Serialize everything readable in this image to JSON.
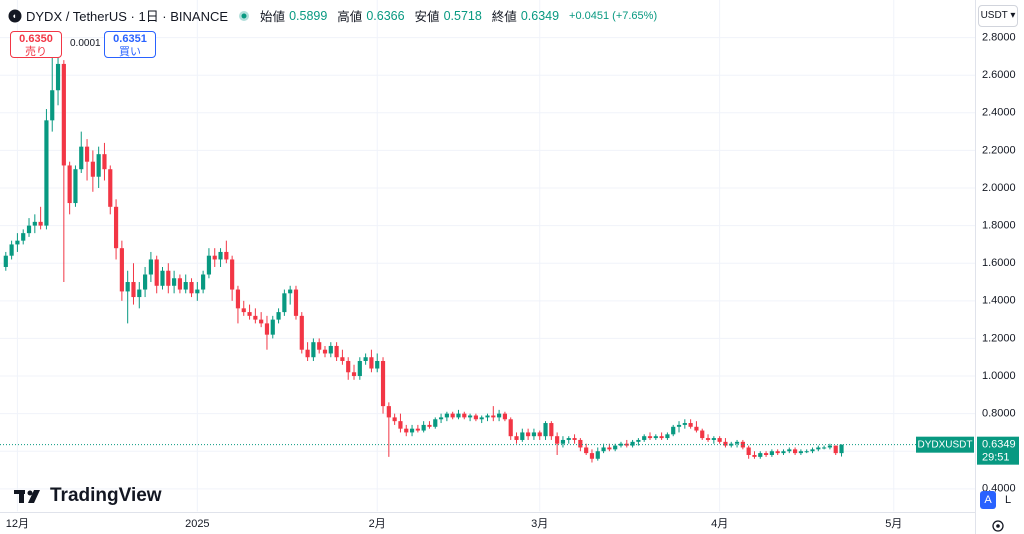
{
  "header": {
    "title": "DYDX / TetherUS · 1日 · BINANCE",
    "open_label": "始値",
    "high_label": "高値",
    "low_label": "安値",
    "close_label": "終値",
    "change": "+0.0451 (+7.65%)",
    "sell_price": "0.6350",
    "sell_label": "売り",
    "spread": "0.0001",
    "buy_price": "0.6351",
    "buy_label": "買い",
    "currency": "USDT",
    "symbol_tag": "DYDXUSDT",
    "countdown": "29:51",
    "logo": "TradingView",
    "auto_button": "A",
    "log_button": "L"
  },
  "chart_data": {
    "type": "candlestick",
    "up_color": "#089981",
    "down_color": "#f23645",
    "grid": true,
    "xlim": [
      -1,
      167
    ],
    "xticks": [
      {
        "value": 2,
        "label": "12月"
      },
      {
        "value": 33,
        "label": "2025"
      },
      {
        "value": 64,
        "label": "2月"
      },
      {
        "value": 92,
        "label": "3月"
      },
      {
        "value": 123,
        "label": "4月"
      },
      {
        "value": 153,
        "label": "5月"
      }
    ],
    "ylim": [
      0.28,
      3.0
    ],
    "yticks": [
      {
        "value": 0.4,
        "label": "0.4000"
      },
      {
        "value": 0.6,
        "label": "0.6000"
      },
      {
        "value": 0.8,
        "label": "0.8000"
      },
      {
        "value": 1.0,
        "label": "1.0000"
      },
      {
        "value": 1.2,
        "label": "1.2000"
      },
      {
        "value": 1.4,
        "label": "1.4000"
      },
      {
        "value": 1.6,
        "label": "1.6000"
      },
      {
        "value": 1.8,
        "label": "1.8000"
      },
      {
        "value": 2.0,
        "label": "2.0000"
      },
      {
        "value": 2.2,
        "label": "2.2000"
      },
      {
        "value": 2.4,
        "label": "2.4000"
      },
      {
        "value": 2.6,
        "label": "2.6000"
      },
      {
        "value": 2.8,
        "label": "2.8000"
      }
    ],
    "open": [
      1.58,
      1.64,
      1.7,
      1.72,
      1.76,
      1.8,
      1.82,
      1.8,
      2.36,
      2.52,
      2.66,
      2.12,
      1.92,
      2.1,
      2.22,
      2.14,
      2.06,
      2.18,
      2.1,
      1.9,
      1.68,
      1.45,
      1.5,
      1.42,
      1.46,
      1.54,
      1.62,
      1.48,
      1.56,
      1.48,
      1.52,
      1.46,
      1.5,
      1.44,
      1.46,
      1.54,
      1.64,
      1.62,
      1.66,
      1.62,
      1.46,
      1.36,
      1.34,
      1.32,
      1.3,
      1.28,
      1.22,
      1.3,
      1.34,
      1.44,
      1.46,
      1.32,
      1.14,
      1.1,
      1.18,
      1.14,
      1.12,
      1.16,
      1.1,
      1.08,
      1.02,
      1.0,
      1.08,
      1.1,
      1.04,
      1.08,
      0.84,
      0.78,
      0.76,
      0.72,
      0.7,
      0.72,
      0.71,
      0.74,
      0.73,
      0.77,
      0.78,
      0.8,
      0.78,
      0.8,
      0.78,
      0.79,
      0.77,
      0.78,
      0.79,
      0.78,
      0.8,
      0.77,
      0.68,
      0.66,
      0.7,
      0.68,
      0.7,
      0.68,
      0.75,
      0.68,
      0.64,
      0.66,
      0.67,
      0.66,
      0.62,
      0.59,
      0.56,
      0.6,
      0.62,
      0.61,
      0.63,
      0.64,
      0.63,
      0.65,
      0.66,
      0.68,
      0.67,
      0.68,
      0.67,
      0.69,
      0.73,
      0.74,
      0.75,
      0.73,
      0.71,
      0.67,
      0.66,
      0.67,
      0.65,
      0.63,
      0.64,
      0.65,
      0.62,
      0.58,
      0.57,
      0.59,
      0.58,
      0.6,
      0.59,
      0.6,
      0.61,
      0.59,
      0.6,
      0.6,
      0.61,
      0.62,
      0.62,
      0.63,
      0.5899
    ],
    "high": [
      1.66,
      1.72,
      1.76,
      1.78,
      1.84,
      1.86,
      1.9,
      2.42,
      2.7,
      2.75,
      2.68,
      2.14,
      2.12,
      2.3,
      2.26,
      2.2,
      2.22,
      2.24,
      2.12,
      1.94,
      1.72,
      1.56,
      1.6,
      1.5,
      1.58,
      1.66,
      1.64,
      1.58,
      1.6,
      1.56,
      1.54,
      1.54,
      1.52,
      1.5,
      1.56,
      1.68,
      1.68,
      1.68,
      1.72,
      1.64,
      1.48,
      1.4,
      1.38,
      1.36,
      1.34,
      1.32,
      1.32,
      1.36,
      1.46,
      1.48,
      1.48,
      1.34,
      1.18,
      1.2,
      1.2,
      1.16,
      1.18,
      1.18,
      1.14,
      1.1,
      1.06,
      1.1,
      1.12,
      1.14,
      1.12,
      1.1,
      0.86,
      0.8,
      0.8,
      0.74,
      0.74,
      0.74,
      0.76,
      0.76,
      0.78,
      0.8,
      0.81,
      0.81,
      0.82,
      0.81,
      0.8,
      0.8,
      0.79,
      0.8,
      0.84,
      0.82,
      0.81,
      0.78,
      0.7,
      0.72,
      0.72,
      0.72,
      0.71,
      0.76,
      0.76,
      0.7,
      0.68,
      0.68,
      0.69,
      0.67,
      0.64,
      0.61,
      0.62,
      0.64,
      0.64,
      0.64,
      0.65,
      0.66,
      0.66,
      0.67,
      0.69,
      0.7,
      0.69,
      0.7,
      0.7,
      0.74,
      0.76,
      0.77,
      0.77,
      0.76,
      0.72,
      0.69,
      0.68,
      0.68,
      0.67,
      0.65,
      0.66,
      0.66,
      0.63,
      0.6,
      0.6,
      0.6,
      0.61,
      0.61,
      0.61,
      0.62,
      0.62,
      0.61,
      0.61,
      0.62,
      0.63,
      0.63,
      0.64,
      0.63,
      0.6366
    ],
    "low": [
      1.56,
      1.62,
      1.66,
      1.7,
      1.74,
      1.76,
      1.78,
      1.78,
      2.3,
      2.44,
      1.5,
      1.86,
      1.9,
      2.08,
      2.04,
      1.98,
      2.0,
      2.04,
      1.86,
      1.62,
      1.4,
      1.28,
      1.38,
      1.36,
      1.42,
      1.5,
      1.44,
      1.46,
      1.44,
      1.44,
      1.44,
      1.44,
      1.42,
      1.4,
      1.44,
      1.52,
      1.58,
      1.58,
      1.6,
      1.4,
      1.28,
      1.32,
      1.3,
      1.28,
      1.26,
      1.14,
      1.2,
      1.28,
      1.32,
      1.38,
      1.3,
      1.12,
      1.08,
      1.08,
      1.12,
      1.1,
      1.1,
      1.08,
      1.06,
      0.98,
      0.98,
      0.98,
      1.06,
      1.02,
      1.02,
      0.8,
      0.57,
      0.74,
      0.7,
      0.68,
      0.68,
      0.7,
      0.7,
      0.72,
      0.72,
      0.75,
      0.76,
      0.77,
      0.77,
      0.77,
      0.76,
      0.76,
      0.75,
      0.76,
      0.76,
      0.76,
      0.76,
      0.66,
      0.64,
      0.65,
      0.66,
      0.66,
      0.66,
      0.66,
      0.66,
      0.58,
      0.62,
      0.64,
      0.64,
      0.6,
      0.58,
      0.54,
      0.55,
      0.59,
      0.6,
      0.6,
      0.62,
      0.62,
      0.62,
      0.63,
      0.65,
      0.66,
      0.66,
      0.66,
      0.66,
      0.68,
      0.7,
      0.72,
      0.72,
      0.7,
      0.66,
      0.65,
      0.64,
      0.64,
      0.62,
      0.62,
      0.62,
      0.61,
      0.56,
      0.56,
      0.56,
      0.57,
      0.57,
      0.58,
      0.58,
      0.59,
      0.58,
      0.58,
      0.59,
      0.59,
      0.6,
      0.61,
      0.61,
      0.58,
      0.5718
    ],
    "close": [
      1.64,
      1.7,
      1.72,
      1.76,
      1.8,
      1.82,
      1.8,
      2.36,
      2.52,
      2.66,
      2.12,
      1.92,
      2.1,
      2.22,
      2.14,
      2.06,
      2.18,
      2.1,
      1.9,
      1.68,
      1.45,
      1.5,
      1.42,
      1.46,
      1.54,
      1.62,
      1.48,
      1.56,
      1.48,
      1.52,
      1.46,
      1.5,
      1.44,
      1.46,
      1.54,
      1.64,
      1.62,
      1.66,
      1.62,
      1.46,
      1.36,
      1.34,
      1.32,
      1.3,
      1.28,
      1.22,
      1.3,
      1.34,
      1.44,
      1.46,
      1.32,
      1.14,
      1.1,
      1.18,
      1.14,
      1.12,
      1.16,
      1.1,
      1.08,
      1.02,
      1.0,
      1.08,
      1.1,
      1.04,
      1.08,
      0.84,
      0.78,
      0.76,
      0.72,
      0.7,
      0.72,
      0.71,
      0.74,
      0.73,
      0.77,
      0.78,
      0.8,
      0.78,
      0.8,
      0.78,
      0.79,
      0.77,
      0.78,
      0.79,
      0.78,
      0.8,
      0.77,
      0.68,
      0.66,
      0.7,
      0.68,
      0.7,
      0.68,
      0.75,
      0.68,
      0.64,
      0.66,
      0.67,
      0.66,
      0.62,
      0.59,
      0.56,
      0.6,
      0.62,
      0.61,
      0.63,
      0.64,
      0.63,
      0.65,
      0.66,
      0.68,
      0.67,
      0.68,
      0.67,
      0.69,
      0.73,
      0.74,
      0.75,
      0.73,
      0.71,
      0.67,
      0.66,
      0.67,
      0.65,
      0.63,
      0.64,
      0.65,
      0.62,
      0.58,
      0.57,
      0.59,
      0.58,
      0.6,
      0.59,
      0.6,
      0.61,
      0.59,
      0.6,
      0.6,
      0.61,
      0.62,
      0.62,
      0.63,
      0.5899,
      0.6349
    ]
  }
}
